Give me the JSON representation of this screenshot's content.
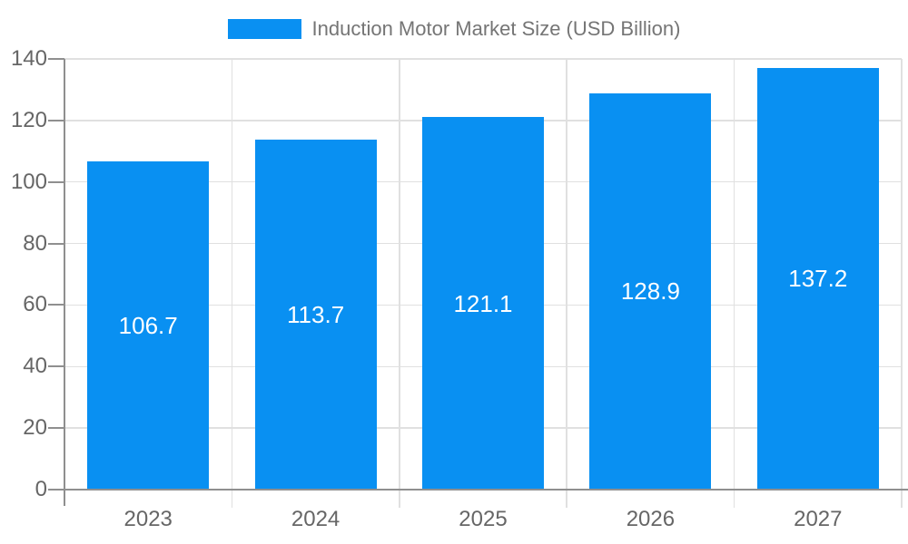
{
  "legend": {
    "label": "Induction Motor Market Size (USD Billion)"
  },
  "chart_data": {
    "type": "bar",
    "title": "",
    "series_name": "Induction Motor Market Size (USD Billion)",
    "categories": [
      "2023",
      "2024",
      "2025",
      "2026",
      "2027"
    ],
    "values": [
      106.7,
      113.7,
      121.1,
      128.9,
      137.2
    ],
    "value_labels": [
      "106.7",
      "113.7",
      "121.1",
      "128.9",
      "137.2"
    ],
    "xlabel": "",
    "ylabel": "",
    "ylim": [
      0,
      140
    ],
    "yticks": [
      0,
      20,
      40,
      60,
      80,
      100,
      120,
      140
    ],
    "grid": true,
    "legend_position": "top-center",
    "colors": {
      "bar": "#0990f2",
      "value_label": "#ffffff",
      "axis": "#8f8f8f",
      "gridline": "#e0e0e0",
      "tick_label": "#666666",
      "legend_text": "#757575",
      "background": "#ffffff"
    }
  }
}
